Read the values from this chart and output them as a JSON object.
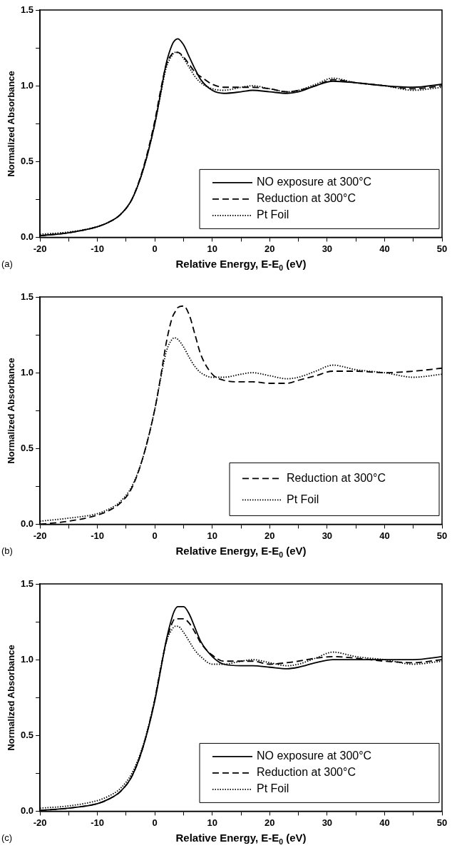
{
  "chart_data": [
    {
      "type": "line",
      "xlabel": "Relative Energy, E-E$_{0}$ (eV)",
      "ylabel": "Normalized Absorbance",
      "annotations": [
        "(a)"
      ],
      "legend": "bottom right",
      "grid": false,
      "marker": "none",
      "x": [
        -20,
        -15,
        -10,
        -8,
        -6,
        -4,
        -2,
        0,
        1,
        2,
        3,
        3.5,
        4,
        5,
        6,
        7,
        8,
        10,
        12,
        15,
        17,
        20,
        23,
        25,
        28,
        31,
        35,
        40,
        45,
        50
      ],
      "xlim": [
        -20,
        50
      ],
      "xticks": [
        -20,
        {
          "value": -15,
          "label": null
        },
        -10,
        {
          "value": -5,
          "label": null
        },
        0,
        {
          "value": 5,
          "label": null
        },
        10,
        {
          "value": 15,
          "label": null
        },
        20,
        {
          "value": 25,
          "label": null
        },
        30,
        {
          "value": 35,
          "label": null
        },
        40,
        {
          "value": 45,
          "label": null
        },
        50
      ],
      "ylim": [
        0,
        1.5
      ],
      "yticks": [
        {
          "value": 0,
          "label": "0.0"
        },
        {
          "value": 0.25,
          "label": null
        },
        {
          "value": 0.5,
          "label": "0.5"
        },
        {
          "value": 0.75,
          "label": null
        },
        {
          "value": 1,
          "label": "1.0"
        },
        {
          "value": 1.25,
          "label": null
        },
        {
          "value": 1.5,
          "label": "1.5"
        }
      ],
      "series": [
        {
          "name": "NO exposure at 300°C",
          "color": "#000000",
          "line_style": "solid",
          "values": [
            0.01,
            0.03,
            0.07,
            0.1,
            0.15,
            0.25,
            0.45,
            0.75,
            0.95,
            1.15,
            1.27,
            1.3,
            1.31,
            1.27,
            1.19,
            1.11,
            1.04,
            0.97,
            0.95,
            0.96,
            0.97,
            0.96,
            0.95,
            0.96,
            1.0,
            1.03,
            1.02,
            1.0,
            0.99,
            1.01
          ]
        },
        {
          "name": "Reduction at 300°C",
          "color": "#000000",
          "line_style": "dashed",
          "values": [
            0.01,
            0.03,
            0.07,
            0.1,
            0.15,
            0.25,
            0.46,
            0.77,
            0.97,
            1.14,
            1.21,
            1.22,
            1.22,
            1.19,
            1.14,
            1.09,
            1.06,
            1.01,
            0.99,
            0.99,
            0.99,
            0.98,
            0.96,
            0.97,
            1.0,
            1.04,
            1.02,
            1.0,
            0.98,
            1.0
          ]
        },
        {
          "name": "Pt Foil",
          "color": "#000000",
          "line_style": "dotted",
          "values": [
            0.02,
            0.035,
            0.07,
            0.1,
            0.15,
            0.25,
            0.45,
            0.75,
            0.94,
            1.12,
            1.2,
            1.22,
            1.22,
            1.18,
            1.12,
            1.06,
            1.02,
            0.98,
            0.97,
            0.99,
            1.0,
            0.98,
            0.96,
            0.97,
            1.01,
            1.05,
            1.02,
            1.0,
            0.97,
            0.99
          ]
        }
      ]
    },
    {
      "type": "line",
      "xlabel": "Relative Energy, E-E$_{0}$ (eV)",
      "ylabel": "Normalized Absorbance",
      "annotations": [
        "(b)"
      ],
      "legend": "bottom right",
      "grid": false,
      "marker": "none",
      "x": [
        -20,
        -15,
        -10,
        -8,
        -6,
        -4,
        -2,
        0,
        1,
        2,
        3,
        3.5,
        4,
        5,
        6,
        7,
        8,
        10,
        12,
        15,
        17,
        20,
        23,
        25,
        28,
        31,
        35,
        40,
        45,
        50
      ],
      "xlim": [
        -20,
        50
      ],
      "xticks": [
        -20,
        {
          "value": -15,
          "label": null
        },
        -10,
        {
          "value": -5,
          "label": null
        },
        0,
        {
          "value": 5,
          "label": null
        },
        10,
        {
          "value": 15,
          "label": null
        },
        20,
        {
          "value": 25,
          "label": null
        },
        30,
        {
          "value": 35,
          "label": null
        },
        40,
        {
          "value": 45,
          "label": null
        },
        50
      ],
      "ylim": [
        0,
        1.5
      ],
      "yticks": [
        {
          "value": 0,
          "label": "0.0"
        },
        {
          "value": 0.25,
          "label": null
        },
        {
          "value": 0.5,
          "label": "0.5"
        },
        {
          "value": 0.75,
          "label": null
        },
        {
          "value": 1,
          "label": "1.0"
        },
        {
          "value": 1.25,
          "label": null
        },
        {
          "value": 1.5,
          "label": "1.5"
        }
      ],
      "series": [
        {
          "name": "Reduction at 300°C",
          "color": "#000000",
          "line_style": "dashed",
          "values": [
            0.0,
            0.02,
            0.06,
            0.09,
            0.14,
            0.24,
            0.45,
            0.76,
            0.97,
            1.2,
            1.36,
            1.4,
            1.43,
            1.44,
            1.38,
            1.25,
            1.12,
            0.99,
            0.95,
            0.94,
            0.94,
            0.93,
            0.93,
            0.95,
            0.98,
            1.01,
            1.01,
            1.0,
            1.01,
            1.03
          ]
        },
        {
          "name": "Pt Foil",
          "color": "#000000",
          "line_style": "dotted",
          "values": [
            0.02,
            0.04,
            0.07,
            0.1,
            0.15,
            0.25,
            0.45,
            0.76,
            0.96,
            1.14,
            1.22,
            1.23,
            1.22,
            1.17,
            1.1,
            1.04,
            1.0,
            0.97,
            0.97,
            0.99,
            1.0,
            0.98,
            0.96,
            0.97,
            1.01,
            1.05,
            1.02,
            1.0,
            0.97,
            0.99
          ]
        }
      ]
    },
    {
      "type": "line",
      "xlabel": "Relative Energy, E-E$_{0}$ (eV)",
      "ylabel": "Normalized Absorbance",
      "annotations": [
        "(c)"
      ],
      "legend": "bottom right",
      "grid": false,
      "marker": "none",
      "x": [
        -20,
        -15,
        -10,
        -8,
        -6,
        -4,
        -2,
        0,
        1,
        2,
        3,
        3.5,
        4,
        5,
        6,
        7,
        8,
        10,
        12,
        15,
        17,
        20,
        23,
        25,
        28,
        31,
        35,
        40,
        45,
        50
      ],
      "xlim": [
        -20,
        50
      ],
      "xticks": [
        -20,
        {
          "value": -15,
          "label": null
        },
        -10,
        {
          "value": -5,
          "label": null
        },
        0,
        {
          "value": 5,
          "label": null
        },
        10,
        {
          "value": 15,
          "label": null
        },
        20,
        {
          "value": 25,
          "label": null
        },
        30,
        {
          "value": 35,
          "label": null
        },
        40,
        {
          "value": 45,
          "label": null
        },
        50
      ],
      "ylim": [
        0,
        1.5
      ],
      "yticks": [
        {
          "value": 0,
          "label": "0.0"
        },
        {
          "value": 0.25,
          "label": null
        },
        {
          "value": 0.5,
          "label": "0.5"
        },
        {
          "value": 0.75,
          "label": null
        },
        {
          "value": 1,
          "label": "1.0"
        },
        {
          "value": 1.25,
          "label": null
        },
        {
          "value": 1.5,
          "label": "1.5"
        }
      ],
      "series": [
        {
          "name": "NO exposure at 300°C",
          "color": "#000000",
          "line_style": "solid",
          "values": [
            0.005,
            0.02,
            0.05,
            0.08,
            0.13,
            0.23,
            0.43,
            0.73,
            0.93,
            1.13,
            1.28,
            1.33,
            1.35,
            1.35,
            1.3,
            1.21,
            1.12,
            1.02,
            0.97,
            0.96,
            0.96,
            0.95,
            0.94,
            0.95,
            0.98,
            1.0,
            1.0,
            1.0,
            1.0,
            1.02
          ]
        },
        {
          "name": "Reduction at 300°C",
          "color": "#000000",
          "line_style": "dashed",
          "values": [
            0.005,
            0.02,
            0.05,
            0.08,
            0.13,
            0.23,
            0.43,
            0.74,
            0.94,
            1.12,
            1.24,
            1.27,
            1.27,
            1.27,
            1.24,
            1.18,
            1.11,
            1.03,
            0.99,
            0.99,
            0.99,
            0.97,
            0.98,
            0.99,
            1.01,
            1.02,
            1.01,
            0.99,
            0.98,
            1.0
          ]
        },
        {
          "name": "Pt Foil",
          "color": "#000000",
          "line_style": "dotted",
          "values": [
            0.02,
            0.035,
            0.07,
            0.1,
            0.15,
            0.25,
            0.44,
            0.74,
            0.94,
            1.12,
            1.2,
            1.22,
            1.22,
            1.18,
            1.12,
            1.06,
            1.02,
            0.97,
            0.97,
            0.99,
            1.0,
            0.98,
            0.96,
            0.97,
            1.01,
            1.05,
            1.02,
            1.0,
            0.97,
            0.99
          ]
        }
      ]
    }
  ]
}
